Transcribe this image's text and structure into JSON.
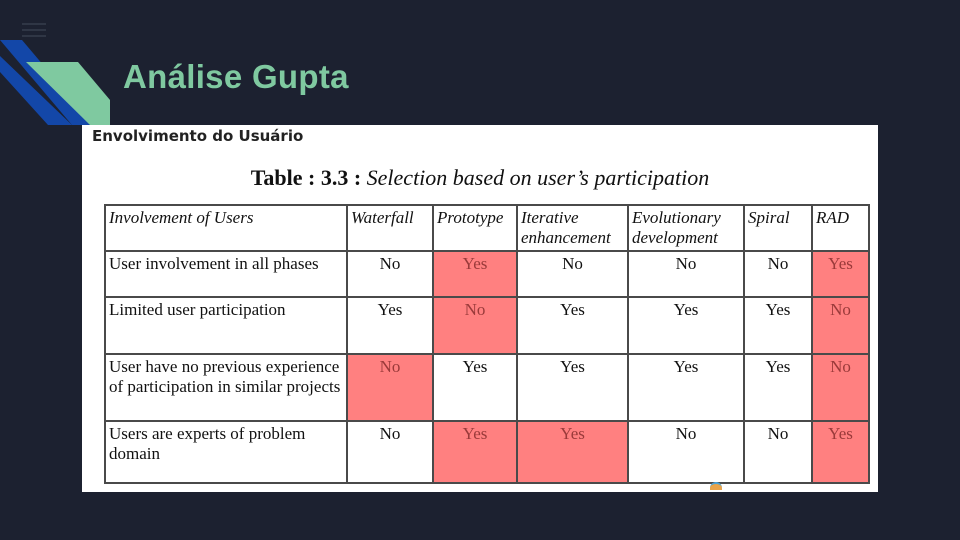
{
  "slide": {
    "title": "Análise Gupta",
    "menu_icon": "hamburger-menu-icon",
    "colors": {
      "background": "#1c2130",
      "title": "#7fc9a0",
      "accent_dark": "#1347a8",
      "accent_light": "#7fc9a0",
      "highlight": "#ff8080"
    }
  },
  "content": {
    "section_heading": "Envolvimento do Usuário",
    "caption_label": "Table : 3.3 :",
    "caption_text": "Selection based on user’s participation",
    "table": {
      "headers": [
        "Involvement of Users",
        "Waterfall",
        "Prototype",
        "Iterative enhancement",
        "Evolutionary development",
        "Spiral",
        "RAD"
      ],
      "rows": [
        {
          "label": "User involvement in all phases",
          "cells": [
            "No",
            "Yes",
            "No",
            "No",
            "No",
            "Yes"
          ],
          "highlighted": [
            false,
            true,
            false,
            false,
            false,
            true
          ]
        },
        {
          "label": "Limited user participation",
          "cells": [
            "Yes",
            "No",
            "Yes",
            "Yes",
            "Yes",
            "No"
          ],
          "highlighted": [
            false,
            true,
            false,
            false,
            false,
            true
          ]
        },
        {
          "label": "User have no previous experience of participation in similar projects",
          "cells": [
            "No",
            "Yes",
            "Yes",
            "Yes",
            "Yes",
            "No"
          ],
          "highlighted": [
            true,
            false,
            false,
            false,
            false,
            true
          ]
        },
        {
          "label": "Users are experts of problem domain",
          "cells": [
            "No",
            "Yes",
            "Yes",
            "No",
            "No",
            "Yes"
          ],
          "highlighted": [
            false,
            true,
            true,
            false,
            false,
            true
          ]
        }
      ]
    }
  }
}
